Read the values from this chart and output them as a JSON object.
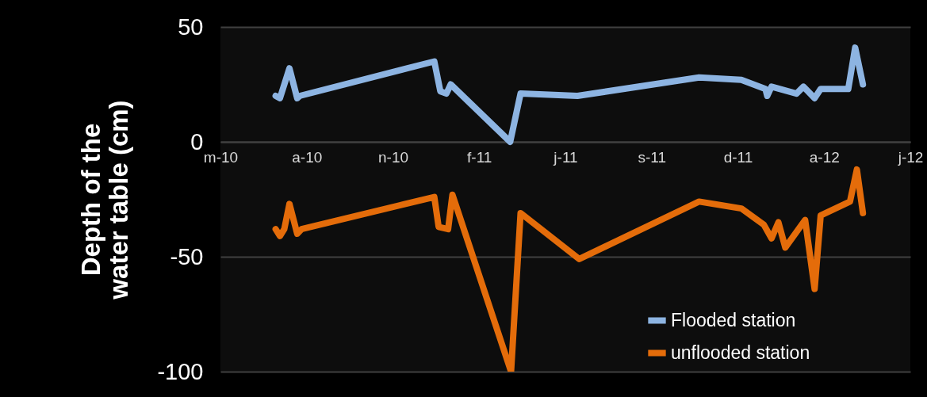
{
  "chart_data": {
    "type": "line",
    "ylabel": "Depth of the water table (cm)",
    "xlim": [
      "2010-05-02",
      "2012-07-10"
    ],
    "xticks": [
      {
        "value": "2010-05-02",
        "label": "m-10"
      },
      {
        "value": "2010-08-10",
        "label": "a-10"
      },
      {
        "value": "2010-11-18",
        "label": "n-10"
      },
      {
        "value": "2011-02-26",
        "label": "f-11"
      },
      {
        "value": "2011-06-06",
        "label": "j-11"
      },
      {
        "value": "2011-09-14",
        "label": "s-11"
      },
      {
        "value": "2011-12-23",
        "label": "d-11"
      },
      {
        "value": "2012-04-01",
        "label": "a-12"
      },
      {
        "value": "2012-07-10",
        "label": "j-12"
      }
    ],
    "ylim": [
      -100,
      50
    ],
    "yticks": [
      -100,
      -50,
      0,
      50
    ],
    "grid": "y",
    "legend": "bottom right",
    "marker": "none",
    "line_style": "solid",
    "series": [
      {
        "name": "Flooded station",
        "color": "#8db4e2",
        "x": [
          "2010-07-05",
          "2010-07-10",
          "2010-07-21",
          "2010-07-30",
          "2010-08-02",
          "2011-01-05",
          "2011-01-12",
          "2011-01-19",
          "2011-01-24",
          "2011-04-03",
          "2011-04-15",
          "2011-06-20",
          "2011-11-08",
          "2011-12-27",
          "2012-01-24",
          "2012-01-26",
          "2012-01-31",
          "2012-02-29",
          "2012-03-08",
          "2012-03-21",
          "2012-03-28",
          "2012-04-29",
          "2012-05-07",
          "2012-05-16"
        ],
        "values": [
          20,
          19,
          32,
          19,
          20,
          35,
          22,
          21,
          25,
          0,
          21,
          20,
          28,
          27,
          23,
          20,
          24,
          21,
          24,
          19,
          23,
          23,
          41,
          25
        ]
      },
      {
        "name": "unflooded station",
        "color": "#e46c0a",
        "x": [
          "2010-07-05",
          "2010-07-10",
          "2010-07-15",
          "2010-07-21",
          "2010-07-30",
          "2010-08-04",
          "2011-01-05",
          "2011-01-10",
          "2011-01-21",
          "2011-01-26",
          "2011-04-04",
          "2011-04-15",
          "2011-06-22",
          "2011-11-08",
          "2011-12-27",
          "2012-01-22",
          "2012-01-31",
          "2012-02-08",
          "2012-02-16",
          "2012-03-10",
          "2012-03-21",
          "2012-03-28",
          "2012-05-01",
          "2012-05-09",
          "2012-05-16"
        ],
        "values": [
          -38,
          -41,
          -38,
          -27,
          -40,
          -38,
          -24,
          -37,
          -38,
          -23,
          -100,
          -31,
          -51,
          -26,
          -29,
          -36,
          -42,
          -35,
          -46,
          -34,
          -64,
          -32,
          -26,
          -12,
          -31
        ]
      }
    ]
  }
}
